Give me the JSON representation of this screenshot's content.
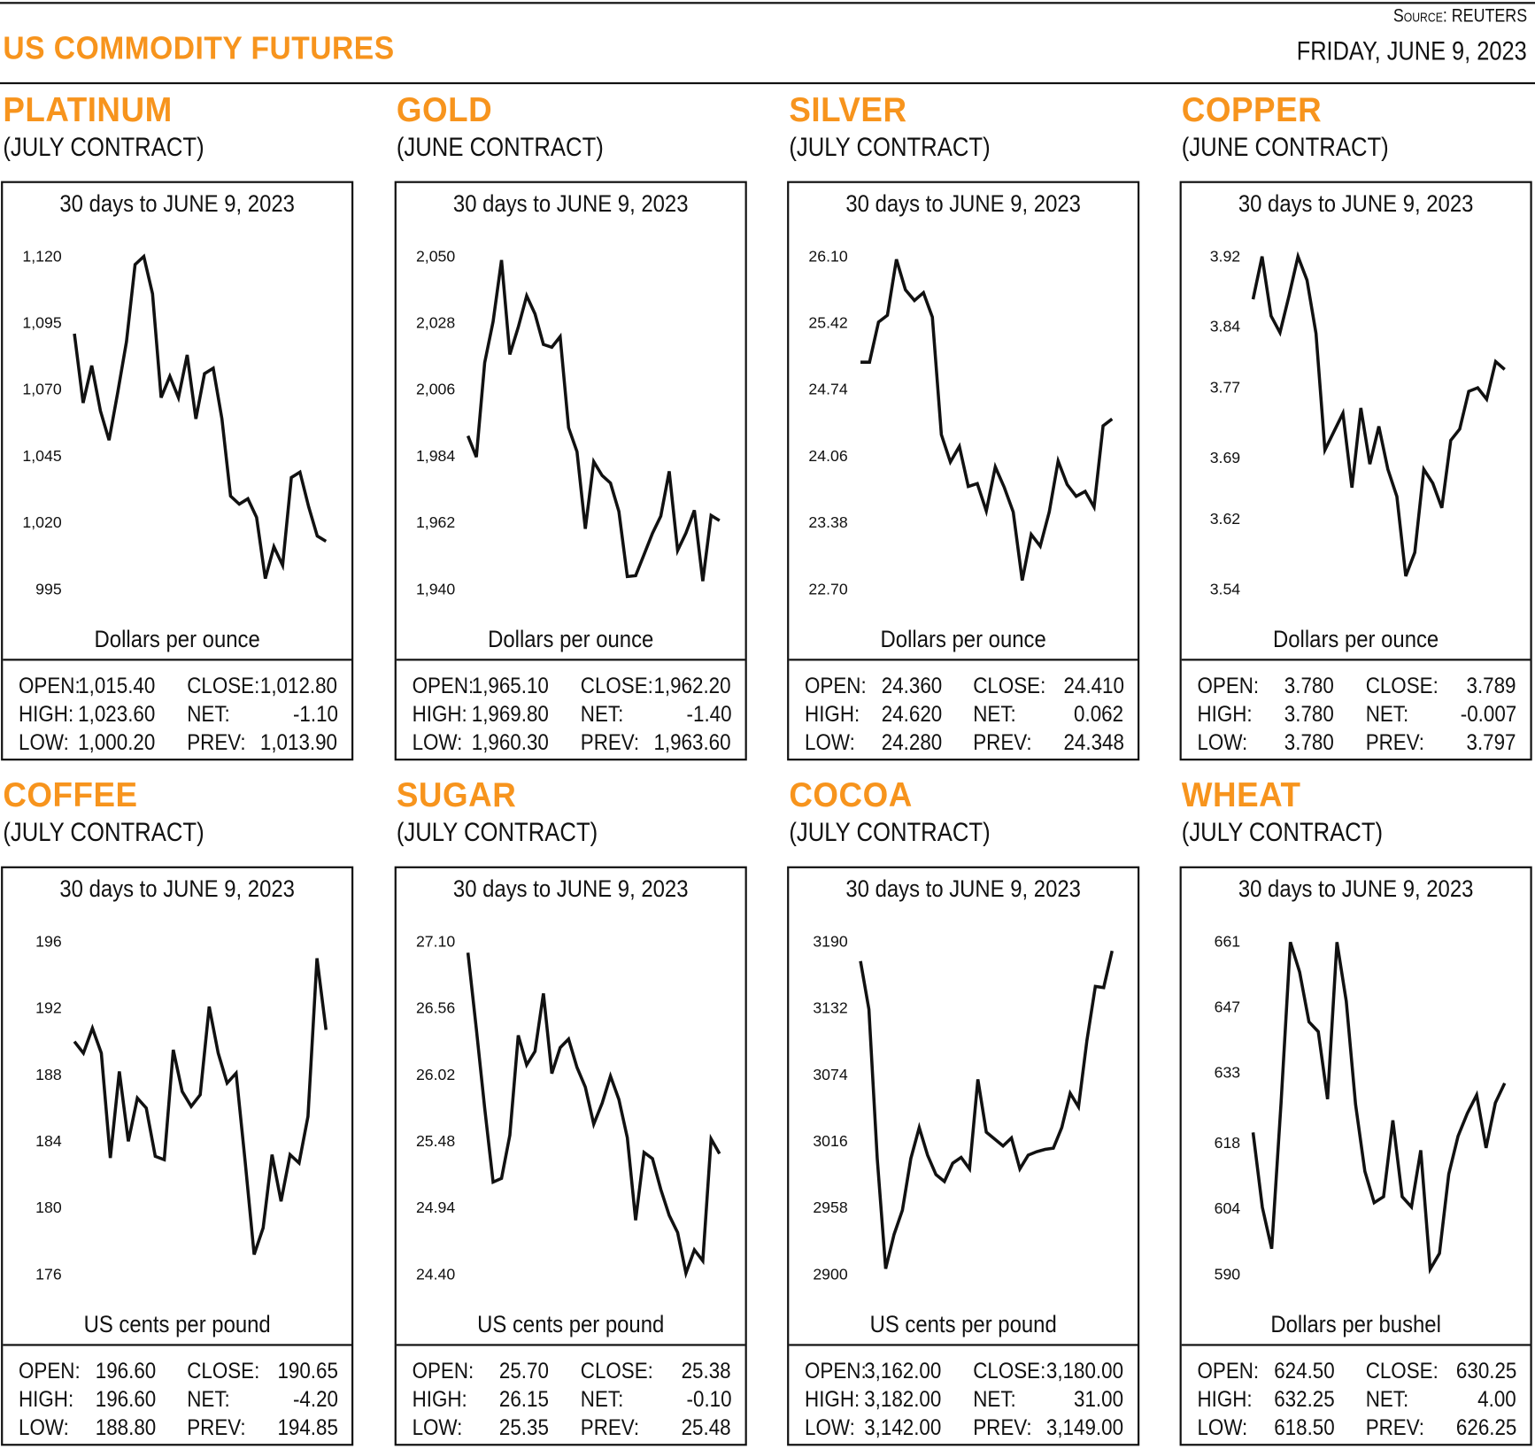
{
  "header": {
    "title": "US COMMODITY FUTURES",
    "source": "Source: REUTERS",
    "date": "FRIDAY, JUNE 9, 2023",
    "accent_color": "#F7941D"
  },
  "period_label": "30 days to JUNE 9, 2023",
  "stat_labels": {
    "open": "OPEN:",
    "high": "HIGH:",
    "low": "LOW:",
    "close": "CLOSE:",
    "net": "NET:",
    "prev": "PREV:"
  },
  "chart_data": [
    {
      "type": "line",
      "name": "PLATINUM",
      "contract": "(JULY CONTRACT)",
      "title": "30 days to JUNE 9, 2023",
      "ylabel": "Dollars per ounce",
      "yticks": [
        1120,
        1095,
        1070,
        1045,
        1020,
        995
      ],
      "ytick_labels": [
        "1,120",
        "1,095",
        "1,070",
        "1,045",
        "1,020",
        "995"
      ],
      "ylim": [
        995,
        1120
      ],
      "grid": false,
      "values": [
        1091,
        1065,
        1079,
        1062,
        1051,
        1069,
        1088,
        1117,
        1120,
        1106,
        1067,
        1075,
        1067,
        1083,
        1059,
        1076,
        1078,
        1059,
        1030,
        1027,
        1029,
        1022,
        999,
        1011,
        1004,
        1037,
        1039,
        1026,
        1015,
        1013
      ],
      "stats": {
        "open": "1,015.40",
        "high": "1,023.60",
        "low": "1,000.20",
        "close": "1,012.80",
        "net": "-1.10",
        "prev": "1,013.90"
      }
    },
    {
      "type": "line",
      "name": "GOLD",
      "contract": "(JUNE CONTRACT)",
      "title": "30 days to JUNE 9, 2023",
      "ylabel": "Dollars per ounce",
      "yticks": [
        2050,
        2028,
        2006,
        1984,
        1962,
        1940
      ],
      "ytick_labels": [
        "2,050",
        "2,028",
        "2,006",
        "1,984",
        "1,962",
        "1,940"
      ],
      "ylim": [
        1940,
        2050
      ],
      "grid": false,
      "values": [
        1990.7,
        1983.7,
        2014.9,
        2028.5,
        2048.8,
        2017.6,
        2026.6,
        2037.0,
        2031.0,
        2020.9,
        2020.0,
        2023.5,
        1993.4,
        1985.5,
        1960.0,
        1982.2,
        1977.6,
        1975.1,
        1965.7,
        1944.2,
        1944.5,
        1951.5,
        1958.5,
        1964.2,
        1979.0,
        1952.8,
        1958.6,
        1966.1,
        1942.7,
        1964.4,
        1962.7
      ],
      "stats": {
        "open": "1,965.10",
        "high": "1,969.80",
        "low": "1,960.30",
        "close": "1,962.20",
        "net": "-1.40",
        "prev": "1,963.60"
      }
    },
    {
      "type": "line",
      "name": "SILVER",
      "contract": "(JULY CONTRACT)",
      "title": "30 days to JUNE 9, 2023",
      "ylabel": "Dollars per ounce",
      "yticks": [
        26.1,
        25.42,
        24.74,
        24.06,
        23.38,
        22.7
      ],
      "ytick_labels": [
        "26.10",
        "25.42",
        "24.74",
        "24.06",
        "23.38",
        "22.70"
      ],
      "ylim": [
        22.7,
        26.1
      ],
      "grid": false,
      "values": [
        25.02,
        25.02,
        25.43,
        25.5,
        26.07,
        25.76,
        25.65,
        25.73,
        25.48,
        24.28,
        24.0,
        24.16,
        23.75,
        23.78,
        23.5,
        23.95,
        23.74,
        23.49,
        22.79,
        23.26,
        23.14,
        23.49,
        24.01,
        23.77,
        23.65,
        23.7,
        23.54,
        24.37,
        24.44
      ],
      "stats": {
        "open": "24.360",
        "high": "24.620",
        "low": "24.280",
        "close": "24.410",
        "net": "0.062",
        "prev": "24.348"
      }
    },
    {
      "type": "line",
      "name": "COPPER",
      "contract": "(JUNE CONTRACT)",
      "title": "30 days to JUNE 9, 2023",
      "ylabel": "Dollars per ounce",
      "yticks": [
        3.92,
        3.84,
        3.77,
        3.69,
        3.62,
        3.54
      ],
      "ytick_labels": [
        "3.92",
        "3.84",
        "3.77",
        "3.69",
        "3.62",
        "3.54"
      ],
      "ylim": [
        3.54,
        3.92
      ],
      "grid": false,
      "values": [
        3.871,
        3.92,
        3.852,
        3.833,
        3.875,
        3.92,
        3.893,
        3.832,
        3.699,
        3.72,
        3.741,
        3.656,
        3.747,
        3.683,
        3.726,
        3.677,
        3.646,
        3.555,
        3.582,
        3.677,
        3.661,
        3.633,
        3.71,
        3.723,
        3.766,
        3.77,
        3.757,
        3.8,
        3.791
      ],
      "stats": {
        "open": "3.780",
        "high": "3.780",
        "low": "3.780",
        "close": "3.789",
        "net": "-0.007",
        "prev": "3.797"
      }
    },
    {
      "type": "line",
      "name": "COFFEE",
      "contract": "(JULY CONTRACT)",
      "title": "30 days to JUNE 9, 2023",
      "ylabel": "US cents per pound",
      "yticks": [
        196,
        192,
        188,
        184,
        180,
        176
      ],
      "ytick_labels": [
        "196",
        "192",
        "188",
        "184",
        "180",
        "176"
      ],
      "ylim": [
        176,
        196
      ],
      "grid": false,
      "values": [
        190.0,
        189.3,
        190.8,
        189.3,
        183.0,
        188.2,
        184.0,
        186.6,
        186.0,
        183.1,
        182.9,
        189.5,
        187.0,
        186.1,
        186.8,
        192.1,
        189.3,
        187.5,
        188.1,
        182.8,
        177.2,
        178.8,
        183.2,
        180.4,
        183.2,
        182.7,
        185.5,
        195.0,
        190.7
      ],
      "stats": {
        "open": "196.60",
        "high": "196.60",
        "low": "188.80",
        "close": "190.65",
        "net": "-4.20",
        "prev": "194.85"
      }
    },
    {
      "type": "line",
      "name": "SUGAR",
      "contract": "(JULY CONTRACT)",
      "title": "30 days to JUNE 9, 2023",
      "ylabel": "US cents per pound",
      "yticks": [
        27.1,
        26.56,
        26.02,
        25.48,
        24.94,
        24.4
      ],
      "ytick_labels": [
        "27.10",
        "26.56",
        "26.02",
        "25.48",
        "24.94",
        "24.40"
      ],
      "ylim": [
        24.4,
        27.1
      ],
      "grid": false,
      "values": [
        27.01,
        26.39,
        25.75,
        25.15,
        25.18,
        25.53,
        26.34,
        26.1,
        26.21,
        26.68,
        26.03,
        26.24,
        26.31,
        26.08,
        25.92,
        25.62,
        25.79,
        26.01,
        25.82,
        25.51,
        24.84,
        25.39,
        25.34,
        25.09,
        24.88,
        24.74,
        24.41,
        24.6,
        24.51,
        25.5,
        25.38
      ],
      "stats": {
        "open": "25.70",
        "high": "26.15",
        "low": "25.35",
        "close": "25.38",
        "net": "-0.10",
        "prev": "25.48"
      }
    },
    {
      "type": "line",
      "name": "COCOA",
      "contract": "(JULY CONTRACT)",
      "title": "30 days to JUNE 9, 2023",
      "ylabel": "US cents per pound",
      "yticks": [
        3190,
        3132,
        3074,
        3016,
        2958,
        2900
      ],
      "ytick_labels": [
        "3190",
        "3132",
        "3074",
        "3016",
        "2958",
        "2900"
      ],
      "ylim": [
        2900,
        3190
      ],
      "grid": false,
      "values": [
        3173,
        3131,
        3001,
        2905,
        2935,
        2956,
        3001,
        3028,
        3004,
        2987,
        2981,
        2997,
        3002,
        2992,
        3070,
        3024,
        3018,
        3012,
        3019,
        2992,
        3004,
        3007,
        3009,
        3010,
        3028,
        3058,
        3046,
        3104,
        3151,
        3150,
        3182
      ],
      "stats": {
        "open": "3,162.00",
        "high": "3,182.00",
        "low": "3,142.00",
        "close": "3,180.00",
        "net": "31.00",
        "prev": "3,149.00"
      }
    },
    {
      "type": "line",
      "name": "WHEAT",
      "contract": "(JULY CONTRACT)",
      "title": "30 days to JUNE 9, 2023",
      "ylabel": "Dollars per bushel",
      "yticks": [
        661,
        647,
        633,
        618,
        604,
        590
      ],
      "ytick_labels": [
        "661",
        "647",
        "633",
        "618",
        "604",
        "590"
      ],
      "ylim": [
        590,
        661
      ],
      "grid": false,
      "values": [
        620.3,
        604.3,
        595.5,
        626.6,
        660.9,
        654.5,
        643.9,
        641.8,
        627.4,
        660.9,
        648.3,
        626.3,
        612.0,
        605.3,
        606.6,
        622.9,
        606.6,
        604.4,
        616.5,
        591.1,
        594.5,
        611.4,
        619.5,
        624.4,
        628.3,
        617.0,
        626.6,
        630.8
      ],
      "stats": {
        "open": "624.50",
        "high": "632.25",
        "low": "618.50",
        "close": "630.25",
        "net": "4.00",
        "prev": "626.25"
      }
    }
  ]
}
